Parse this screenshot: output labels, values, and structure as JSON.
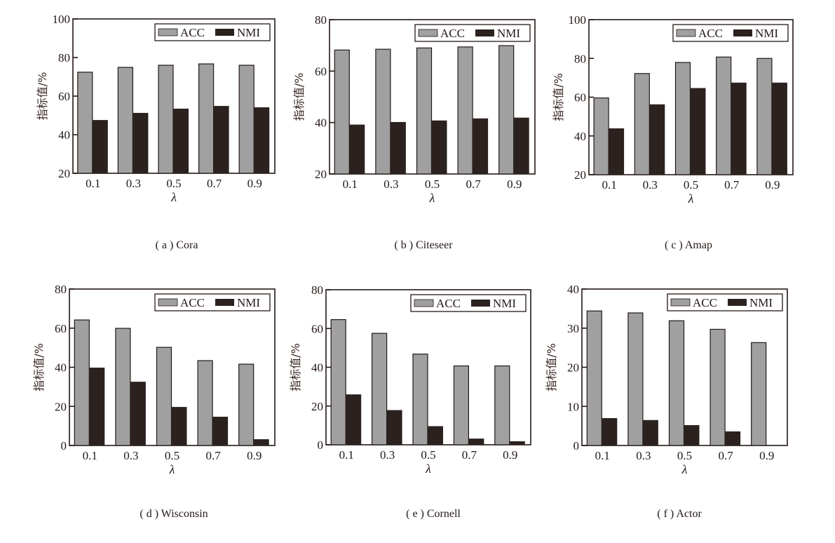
{
  "colors": {
    "acc": "#a0a0a0",
    "nmi": "#2b211e",
    "axis": "#231815"
  },
  "chart_data": [
    {
      "type": "bar",
      "panel": "a",
      "caption": "( a ) Cora",
      "categories": [
        "0.1",
        "0.3",
        "0.5",
        "0.7",
        "0.9"
      ],
      "xlabel": "λ",
      "ylabel": "指标值/%",
      "ylim": [
        20,
        100
      ],
      "yticks": [
        "20",
        "40",
        "60",
        "80",
        "100"
      ],
      "legend": [
        "ACC",
        "NMI"
      ],
      "legend_position": "top-right",
      "grid": false,
      "series": [
        {
          "name": "ACC",
          "values": [
            72.4,
            74.9,
            76.0,
            76.7,
            76.0
          ]
        },
        {
          "name": "NMI",
          "values": [
            47.6,
            51.3,
            53.5,
            54.9,
            54.2
          ]
        }
      ]
    },
    {
      "type": "bar",
      "panel": "b",
      "caption": "( b ) Citeseer",
      "categories": [
        "0.1",
        "0.3",
        "0.5",
        "0.7",
        "0.9"
      ],
      "xlabel": "λ",
      "ylabel": "指标值/%",
      "ylim": [
        20,
        80
      ],
      "yticks": [
        "20",
        "40",
        "60",
        "80"
      ],
      "legend": [
        "ACC",
        "NMI"
      ],
      "legend_position": "top-right",
      "grid": false,
      "series": [
        {
          "name": "ACC",
          "values": [
            68.2,
            68.5,
            69.0,
            69.4,
            69.9
          ]
        },
        {
          "name": "NMI",
          "values": [
            39.2,
            40.2,
            40.8,
            41.6,
            41.9
          ]
        }
      ]
    },
    {
      "type": "bar",
      "panel": "c",
      "caption": "( c ) Amap",
      "categories": [
        "0.1",
        "0.3",
        "0.5",
        "0.7",
        "0.9"
      ],
      "xlabel": "λ",
      "ylabel": "指标值/%",
      "ylim": [
        20,
        100
      ],
      "yticks": [
        "20",
        "40",
        "60",
        "80",
        "100"
      ],
      "legend": [
        "ACC",
        "NMI"
      ],
      "legend_position": "top-right",
      "grid": false,
      "series": [
        {
          "name": "ACC",
          "values": [
            59.6,
            72.2,
            77.9,
            80.7,
            80.0
          ]
        },
        {
          "name": "NMI",
          "values": [
            43.9,
            56.3,
            64.7,
            67.5,
            67.5
          ]
        }
      ]
    },
    {
      "type": "bar",
      "panel": "d",
      "caption": "( d ) Wisconsin",
      "categories": [
        "0.1",
        "0.3",
        "0.5",
        "0.7",
        "0.9"
      ],
      "xlabel": "λ",
      "ylabel": "指标值/%",
      "ylim": [
        0,
        80
      ],
      "yticks": [
        "0",
        "20",
        "40",
        "60",
        "80"
      ],
      "legend": [
        "ACC",
        "NMI"
      ],
      "legend_position": "top-right",
      "grid": false,
      "series": [
        {
          "name": "ACC",
          "values": [
            64.2,
            59.9,
            50.2,
            43.4,
            41.6
          ]
        },
        {
          "name": "NMI",
          "values": [
            39.8,
            32.6,
            19.7,
            14.7,
            3.2
          ]
        }
      ]
    },
    {
      "type": "bar",
      "panel": "e",
      "caption": "( e ) Cornell",
      "categories": [
        "0.1",
        "0.3",
        "0.5",
        "0.7",
        "0.9"
      ],
      "xlabel": "λ",
      "ylabel": "指标值/%",
      "ylim": [
        0,
        80
      ],
      "yticks": [
        "0",
        "20",
        "40",
        "60",
        "80"
      ],
      "legend": [
        "ACC",
        "NMI"
      ],
      "legend_position": "top-right",
      "grid": false,
      "series": [
        {
          "name": "ACC",
          "values": [
            64.6,
            57.5,
            46.8,
            40.7,
            40.7
          ]
        },
        {
          "name": "NMI",
          "values": [
            26.0,
            17.9,
            9.6,
            3.2,
            1.8
          ]
        }
      ]
    },
    {
      "type": "bar",
      "panel": "f",
      "caption": "( f ) Actor",
      "categories": [
        "0.1",
        "0.3",
        "0.5",
        "0.7",
        "0.9"
      ],
      "xlabel": "λ",
      "ylabel": "指标值/%",
      "ylim": [
        0,
        40
      ],
      "yticks": [
        "0",
        "10",
        "20",
        "30",
        "40"
      ],
      "legend": [
        "ACC",
        "NMI"
      ],
      "legend_position": "top-right",
      "grid": false,
      "series": [
        {
          "name": "ACC",
          "values": [
            34.4,
            33.9,
            31.9,
            29.7,
            26.3
          ]
        },
        {
          "name": "NMI",
          "values": [
            7.0,
            6.5,
            5.2,
            3.6,
            0.0
          ]
        }
      ]
    }
  ]
}
